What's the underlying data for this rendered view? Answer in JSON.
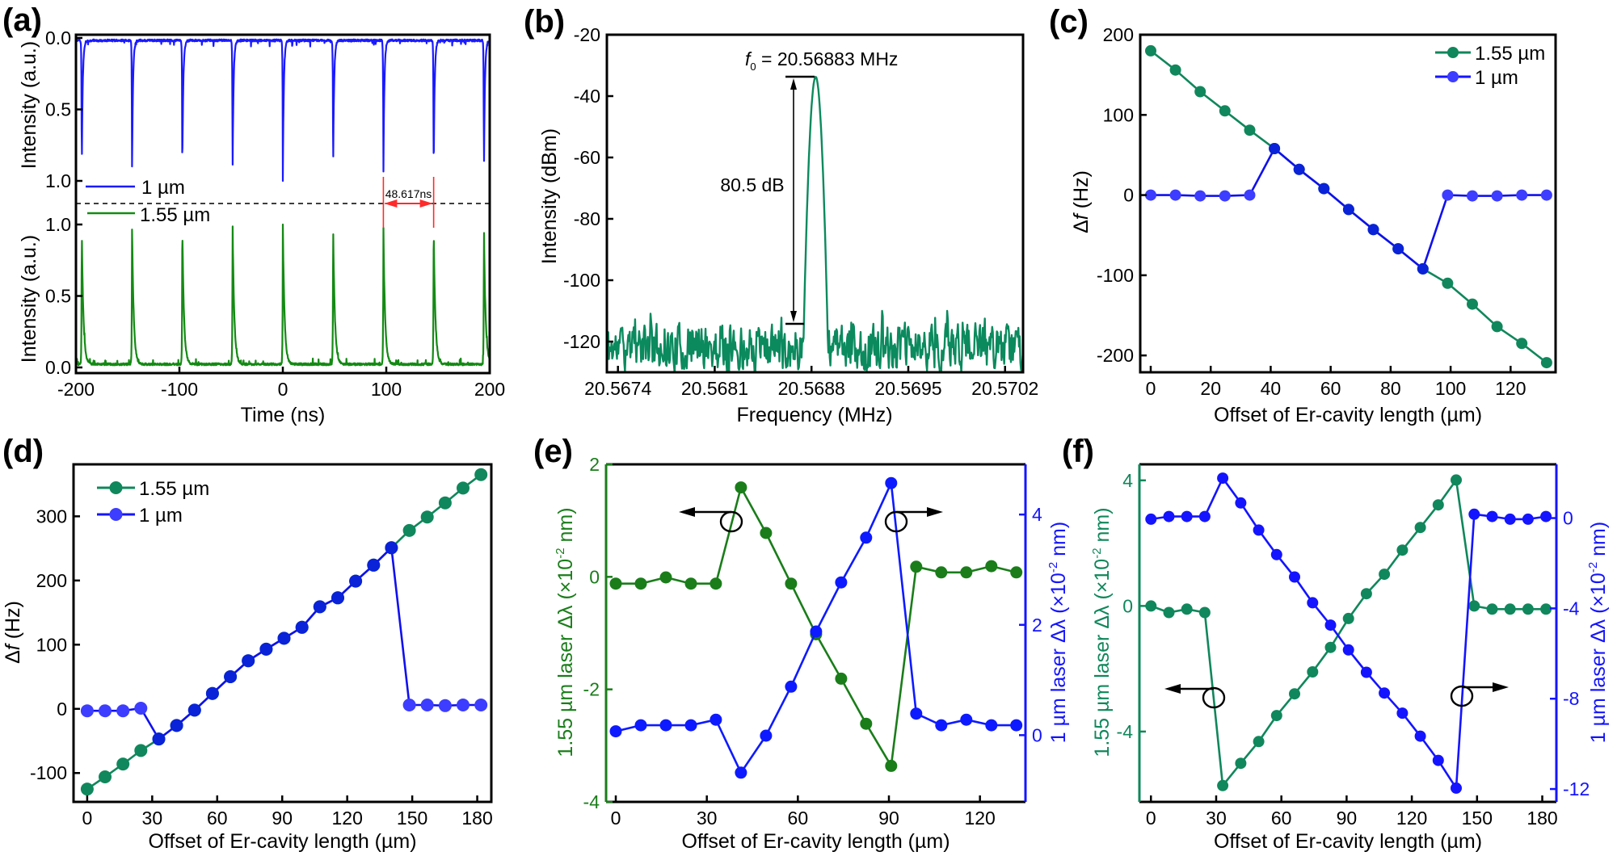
{
  "chart_data": [
    {
      "panel": "(a)",
      "type": "line",
      "xlabel": "Time (ns)",
      "xlim": [
        -200,
        200
      ],
      "xticks": [
        "-200",
        "-100",
        "0",
        "100",
        "200"
      ],
      "legend": "left",
      "top": {
        "name": "1 µm",
        "color": "#1a1aff",
        "ylabel": "Intensity (a.u.)",
        "ylim": [
          0,
          1
        ],
        "y_inverted": true,
        "yticks": [
          "0.0",
          "0.5",
          "1.0"
        ],
        "pulse_times_ns": [
          -194.4,
          -145.8,
          -97.2,
          -48.6,
          0,
          48.6,
          97.2,
          145.8,
          194.4
        ],
        "pulse_amplitudes": [
          0.93,
          0.93,
          0.93,
          0.97,
          1.0,
          0.95,
          0.97,
          0.97,
          0.95
        ]
      },
      "bottom": {
        "name": "1.55 µm",
        "color": "#148a14",
        "ylabel": "Intensity (a.u.)",
        "ylim": [
          0,
          1
        ],
        "yticks": [
          "0.0",
          "0.5",
          "1.0"
        ],
        "pulse_times_ns": [
          -194.4,
          -145.8,
          -97.2,
          -48.6,
          0,
          48.6,
          97.2,
          145.8,
          194.4
        ],
        "pulse_amplitudes": [
          0.95,
          0.98,
          0.98,
          1.0,
          1.0,
          1.0,
          0.98,
          0.98,
          0.97
        ]
      },
      "period_annotation": {
        "text": "48.617ns",
        "from_ns": 97.2,
        "to_ns": 145.8,
        "color": "#ff2a2a"
      }
    },
    {
      "panel": "(b)",
      "type": "line",
      "xlabel": "Frequency (MHz)",
      "ylabel": "Intensity (dBm)",
      "xlim": [
        20.56732,
        20.57033
      ],
      "ylim": [
        -130,
        -20
      ],
      "xticks": [
        "20.5674",
        "20.5681",
        "20.5688",
        "20.5695",
        "20.5702"
      ],
      "yticks": [
        "-20",
        "-40",
        "-60",
        "-80",
        "-100",
        "-120"
      ],
      "color": "#0b8a5e",
      "peak": {
        "frequency_mhz": 20.56883,
        "level_dbm": -33.7
      },
      "noise_floor": {
        "mean_dbm": -122,
        "min_dbm": -130,
        "max_dbm": -110
      },
      "f0_label": {
        "symbol": "f",
        "subscript": "0",
        "text": " = 20.56883 MHz"
      },
      "snr_label": "80.5 dB",
      "snr_bracket_low_dbm": -114.2
    },
    {
      "panel": "(c)",
      "type": "line",
      "xlabel": "Offset of Er-cavity length (µm)",
      "ylabel": {
        "prefix": "Δ",
        "italic": "f",
        "suffix": " (Hz)"
      },
      "xlim": [
        -3.5,
        135
      ],
      "ylim": [
        -221,
        200
      ],
      "xticks": [
        "0",
        "20",
        "40",
        "60",
        "80",
        "100",
        "120"
      ],
      "yticks": [
        "200",
        "100",
        "0",
        "-100",
        "-200"
      ],
      "legend": "top-right",
      "x": [
        0,
        8.25,
        16.5,
        24.75,
        33,
        41.25,
        49.5,
        57.75,
        66,
        74.25,
        82.5,
        90.75,
        99,
        107.25,
        115.5,
        123.75,
        132
      ],
      "series": [
        {
          "name": "1.55 µm",
          "color": "#10875c",
          "values": [
            180,
            156,
            129,
            105,
            81,
            58,
            32,
            8,
            -18,
            -43,
            -67,
            -92,
            -110,
            -136,
            -164,
            -185,
            -209
          ]
        },
        {
          "name": "1 µm",
          "color": "#3d3dff",
          "values": [
            0,
            0,
            -1,
            -1,
            0,
            58,
            32,
            8,
            -18,
            -43,
            -67,
            -92,
            0,
            -1,
            -1,
            0,
            0
          ]
        }
      ]
    },
    {
      "panel": "(d)",
      "type": "line",
      "xlabel": "Offset of Er-cavity length (µm)",
      "ylabel": {
        "prefix": "Δ",
        "italic": "f",
        "suffix": " (Hz)"
      },
      "xlim": [
        -6.3,
        186.5
      ],
      "ylim": [
        -145,
        381
      ],
      "xticks": [
        "0",
        "30",
        "60",
        "90",
        "120",
        "150",
        "180"
      ],
      "yticks": [
        "-100",
        "0",
        "100",
        "200",
        "300"
      ],
      "legend": "top-left",
      "x": [
        0,
        8.26,
        16.52,
        24.78,
        33.04,
        41.3,
        49.56,
        57.82,
        66.08,
        74.34,
        82.6,
        90.86,
        99.12,
        107.38,
        115.64,
        123.9,
        132.16,
        140.42,
        148.68,
        156.94,
        165.2,
        173.46,
        181.72
      ],
      "series": [
        {
          "name": "1.55 µm",
          "color": "#10875c",
          "values": [
            -125,
            -106,
            -86,
            -65,
            -47,
            -26,
            -2,
            24,
            50,
            75,
            93,
            110,
            127,
            159,
            173,
            199,
            224,
            251,
            278,
            299,
            321,
            344,
            365
          ]
        },
        {
          "name": "1 µm",
          "color": "#3d3dff",
          "values": [
            -3,
            -3,
            -3,
            1,
            -47,
            -26,
            -2,
            24,
            50,
            75,
            93,
            110,
            127,
            159,
            173,
            199,
            224,
            251,
            6,
            6,
            5,
            6,
            6
          ]
        }
      ]
    },
    {
      "panel": "(e)",
      "type": "line",
      "xlabel": "Offset of Er-cavity length (µm)",
      "ylabel_left": {
        "main": "1.55 µm laser Δλ (×10",
        "sup": "-2",
        "tail": " nm)"
      },
      "ylabel_right": {
        "main": "1 µm laser Δλ (×10",
        "sup": "-2",
        "tail": " nm)"
      },
      "xlim": [
        -3.2,
        135
      ],
      "ylim_left": [
        -4,
        2
      ],
      "ylim_right": [
        -1.21,
        4.91
      ],
      "xticks": [
        "0",
        "30",
        "60",
        "90",
        "120"
      ],
      "yticks_left": [
        "2",
        "0",
        "-2",
        "-4"
      ],
      "yticks_right": [
        "0",
        "2",
        "4"
      ],
      "x": [
        0,
        8.25,
        16.5,
        24.75,
        33,
        41.25,
        49.5,
        57.75,
        66,
        74.25,
        82.5,
        90.75,
        99,
        107.25,
        115.5,
        123.75,
        132
      ],
      "series": [
        {
          "axis": "left",
          "color": "#1a7d1a",
          "values": [
            -0.12,
            -0.12,
            -0.01,
            -0.12,
            -0.12,
            1.59,
            0.78,
            -0.12,
            -1.02,
            -1.81,
            -2.61,
            -3.36,
            0.18,
            0.08,
            0.08,
            0.19,
            0.08
          ]
        },
        {
          "axis": "right",
          "color": "#0d1aff",
          "values": [
            0.07,
            0.18,
            0.18,
            0.18,
            0.28,
            -0.68,
            -0.01,
            0.88,
            1.88,
            2.77,
            3.58,
            4.57,
            0.39,
            0.18,
            0.28,
            0.18,
            0.18
          ]
        }
      ],
      "axis_arrows": [
        {
          "points_to": "left"
        },
        {
          "points_to": "right"
        }
      ]
    },
    {
      "panel": "(f)",
      "type": "line",
      "xlabel": "Offset of Er-cavity length (µm)",
      "ylabel_left": {
        "main": "1.55 µm laser Δλ (×10",
        "sup": "-2",
        "tail": " nm)"
      },
      "ylabel_right": {
        "main": "1 µm laser Δλ (×10",
        "sup": "-2",
        "tail": " nm)"
      },
      "xlim": [
        -5.3,
        186.5
      ],
      "ylim_left": [
        -6.24,
        4.51
      ],
      "ylim_right": [
        -12.57,
        2.38
      ],
      "xticks": [
        "0",
        "30",
        "60",
        "90",
        "120",
        "150",
        "180"
      ],
      "yticks_left": [
        "4",
        "0",
        "-4"
      ],
      "yticks_right": [
        "0",
        "-4",
        "-8",
        "-12"
      ],
      "x": [
        0,
        8.26,
        16.52,
        24.78,
        33.04,
        41.3,
        49.56,
        57.82,
        66.08,
        74.34,
        82.6,
        90.86,
        99.12,
        107.38,
        115.64,
        123.9,
        132.16,
        140.42,
        148.68,
        156.94,
        165.2,
        173.46,
        181.72
      ],
      "series": [
        {
          "axis": "left",
          "color": "#10875c",
          "values": [
            0,
            -0.21,
            -0.1,
            -0.21,
            -5.72,
            -5.01,
            -4.32,
            -3.49,
            -2.8,
            -2.1,
            -1.32,
            -0.4,
            0.39,
            1.01,
            1.78,
            2.5,
            3.22,
            4.01,
            0,
            -0.1,
            -0.1,
            -0.1,
            -0.1
          ]
        },
        {
          "axis": "right",
          "color": "#1414ff",
          "values": [
            -0.05,
            0.07,
            0.07,
            0.07,
            1.77,
            0.67,
            -0.53,
            -1.62,
            -2.61,
            -3.75,
            -4.74,
            -5.84,
            -6.83,
            -7.75,
            -8.64,
            -9.66,
            -10.73,
            -11.96,
            0.17,
            0.07,
            -0.05,
            -0.05,
            0.07
          ]
        }
      ],
      "axis_arrows": [
        {
          "points_to": "left"
        },
        {
          "points_to": "right"
        }
      ]
    }
  ]
}
